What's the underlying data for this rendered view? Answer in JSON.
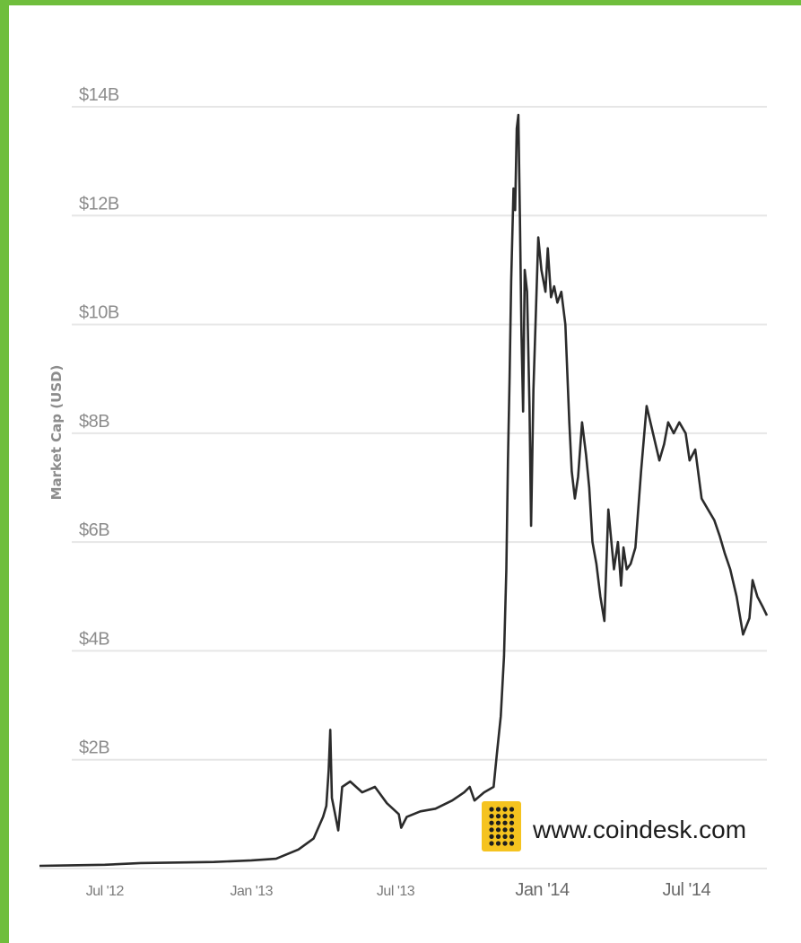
{
  "chart_data": {
    "type": "line",
    "title": "",
    "xlabel": "",
    "ylabel": "Market Cap (USD)",
    "y_unit": "billion USD",
    "ylim": [
      0,
      14
    ],
    "y_ticks": [
      {
        "value": 2,
        "label": "$2B"
      },
      {
        "value": 4,
        "label": "$4B"
      },
      {
        "value": 6,
        "label": "$6B"
      },
      {
        "value": 8,
        "label": "$8B"
      },
      {
        "value": 10,
        "label": "$10B"
      },
      {
        "value": 12,
        "label": "$12B"
      },
      {
        "value": 14,
        "label": "$14B"
      }
    ],
    "x_ticks": [
      {
        "value": "2012-07-01",
        "label": "Jul '12",
        "emphasis": false
      },
      {
        "value": "2013-01-01",
        "label": "Jan '13",
        "emphasis": false
      },
      {
        "value": "2013-07-01",
        "label": "Jul '13",
        "emphasis": false
      },
      {
        "value": "2014-01-01",
        "label": "Jan '14",
        "emphasis": true
      },
      {
        "value": "2014-07-01",
        "label": "Jul '14",
        "emphasis": true
      }
    ],
    "xlim": [
      "2012-04-10",
      "2014-10-10"
    ],
    "grid": true,
    "legend": "none",
    "line_color": "#2b2b2b",
    "grid_color": "#e6e6e6",
    "series": [
      {
        "x": [
          "2012-04-10",
          "2012-05-20",
          "2012-07-01",
          "2012-08-15",
          "2012-10-01",
          "2012-11-15",
          "2013-01-01",
          "2013-02-01",
          "2013-03-01",
          "2013-03-20",
          "2013-04-01",
          "2013-04-05",
          "2013-04-08",
          "2013-04-10",
          "2013-04-12",
          "2013-04-16",
          "2013-04-20",
          "2013-04-25",
          "2013-05-05",
          "2013-05-20",
          "2013-06-05",
          "2013-06-20",
          "2013-07-05",
          "2013-07-08",
          "2013-07-15",
          "2013-08-01",
          "2013-08-20",
          "2013-09-10",
          "2013-09-25",
          "2013-10-02",
          "2013-10-08",
          "2013-10-20",
          "2013-11-01",
          "2013-11-05",
          "2013-11-10",
          "2013-11-14",
          "2013-11-17",
          "2013-11-19",
          "2013-11-21",
          "2013-11-23",
          "2013-11-26",
          "2013-11-28",
          "2013-11-30",
          "2013-12-02",
          "2013-12-04",
          "2013-12-06",
          "2013-12-08",
          "2013-12-10",
          "2013-12-13",
          "2013-12-16",
          "2013-12-18",
          "2013-12-21",
          "2013-12-24",
          "2013-12-27",
          "2013-12-31",
          "2014-01-05",
          "2014-01-08",
          "2014-01-12",
          "2014-01-16",
          "2014-01-20",
          "2014-01-25",
          "2014-01-30",
          "2014-02-04",
          "2014-02-07",
          "2014-02-11",
          "2014-02-15",
          "2014-02-20",
          "2014-02-25",
          "2014-03-01",
          "2014-03-05",
          "2014-03-10",
          "2014-03-15",
          "2014-03-20",
          "2014-03-25",
          "2014-04-01",
          "2014-04-06",
          "2014-04-10",
          "2014-04-13",
          "2014-04-17",
          "2014-04-22",
          "2014-04-28",
          "2014-05-05",
          "2014-05-12",
          "2014-05-20",
          "2014-05-28",
          "2014-06-03",
          "2014-06-08",
          "2014-06-15",
          "2014-06-22",
          "2014-06-30",
          "2014-07-05",
          "2014-07-12",
          "2014-07-20",
          "2014-07-28",
          "2014-08-05",
          "2014-08-12",
          "2014-08-18",
          "2014-08-25",
          "2014-09-02",
          "2014-09-10",
          "2014-09-18",
          "2014-09-22",
          "2014-09-28",
          "2014-10-05",
          "2014-10-10"
        ],
        "y": [
          0.05,
          0.06,
          0.07,
          0.1,
          0.11,
          0.12,
          0.15,
          0.18,
          0.35,
          0.55,
          0.95,
          1.15,
          1.8,
          2.55,
          1.3,
          1.0,
          0.7,
          1.5,
          1.6,
          1.4,
          1.5,
          1.2,
          1.0,
          0.75,
          0.95,
          1.05,
          1.1,
          1.25,
          1.4,
          1.5,
          1.25,
          1.4,
          1.5,
          2.1,
          2.8,
          3.9,
          5.5,
          7.5,
          9.0,
          10.8,
          12.5,
          12.1,
          13.6,
          13.85,
          12.0,
          9.8,
          8.4,
          11.0,
          10.6,
          8.5,
          6.3,
          8.8,
          10.2,
          11.6,
          11.0,
          10.6,
          11.4,
          10.5,
          10.7,
          10.4,
          10.6,
          10.0,
          8.2,
          7.3,
          6.8,
          7.2,
          8.2,
          7.6,
          7.0,
          6.0,
          5.6,
          5.0,
          4.55,
          6.6,
          5.5,
          6.0,
          5.2,
          5.9,
          5.5,
          5.6,
          5.9,
          7.3,
          8.5,
          8.0,
          7.5,
          7.8,
          8.2,
          8.0,
          8.2,
          8.0,
          7.5,
          7.7,
          6.8,
          6.6,
          6.4,
          6.1,
          5.8,
          5.5,
          5.0,
          4.3,
          4.6,
          5.3,
          5.0,
          4.8,
          4.65
        ]
      }
    ]
  },
  "watermark": {
    "text": "www.coindesk.com",
    "logo_color": "#f5c31f",
    "logo_icon": "coindesk-logo-icon"
  },
  "frame": {
    "accent_color": "#6fbe3c"
  }
}
